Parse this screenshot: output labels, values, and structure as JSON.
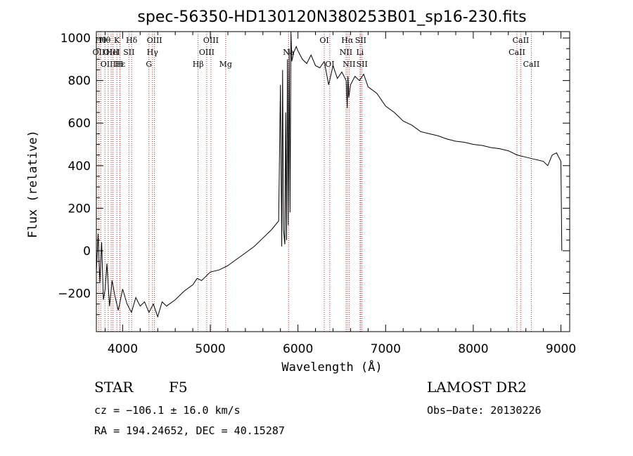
{
  "chart_data": {
    "type": "line",
    "title": "spec-56350-HD130120N380253B01_sp16-230.fits",
    "xlabel": "Wavelength (Å)",
    "ylabel": "Flux (relative)",
    "xlim": [
      3700,
      9100
    ],
    "ylim": [
      -380,
      1030
    ],
    "xticks": [
      4000,
      5000,
      6000,
      7000,
      8000,
      9000
    ],
    "yticks": [
      -200,
      0,
      200,
      400,
      600,
      800,
      1000
    ],
    "line_color": "#000000",
    "marker_color": "#b03030",
    "series": [
      {
        "x": [
          3700,
          3720,
          3740,
          3760,
          3780,
          3800,
          3820,
          3850,
          3880,
          3910,
          3950,
          4000,
          4050,
          4100,
          4150,
          4200,
          4250,
          4300,
          4350,
          4400,
          4450,
          4500,
          4600,
          4700,
          4800,
          4850,
          4900,
          5000,
          5100,
          5200,
          5300,
          5400,
          5500,
          5600,
          5700,
          5780,
          5800,
          5815,
          5825,
          5835,
          5850,
          5860,
          5870,
          5880,
          5890,
          5900,
          5910,
          5920,
          5930,
          5950,
          5980,
          6000,
          6050,
          6100,
          6150,
          6200,
          6250,
          6300,
          6350,
          6400,
          6450,
          6500,
          6550,
          6562,
          6570,
          6580,
          6600,
          6650,
          6700,
          6750,
          6800,
          6900,
          7000,
          7100,
          7200,
          7300,
          7400,
          7500,
          7600,
          7700,
          7800,
          7900,
          8000,
          8100,
          8200,
          8300,
          8400,
          8500,
          8600,
          8700,
          8800,
          8850,
          8900,
          8950,
          9000,
          9010
        ],
        "y": [
          -100,
          80,
          -150,
          40,
          -230,
          -180,
          -60,
          -260,
          -140,
          -210,
          -280,
          -180,
          -250,
          -290,
          -220,
          -260,
          -240,
          -290,
          -250,
          -310,
          -240,
          -260,
          -230,
          -190,
          -160,
          -130,
          -140,
          -100,
          -90,
          -70,
          -40,
          -10,
          20,
          60,
          100,
          140,
          780,
          20,
          850,
          100,
          30,
          650,
          50,
          900,
          120,
          950,
          180,
          1030,
          890,
          930,
          960,
          940,
          900,
          880,
          920,
          870,
          860,
          890,
          780,
          870,
          810,
          840,
          800,
          670,
          820,
          720,
          780,
          820,
          800,
          830,
          770,
          740,
          680,
          650,
          610,
          590,
          560,
          550,
          540,
          525,
          515,
          510,
          500,
          495,
          485,
          480,
          470,
          450,
          440,
          430,
          420,
          400,
          450,
          460,
          420,
          0
        ]
      }
    ],
    "lines": [
      {
        "wl": 3727,
        "row": 1,
        "label": "OII"
      },
      {
        "wl": 3750,
        "row": 0,
        "label": "Hθ"
      },
      {
        "wl": 3798,
        "row": 0,
        "label": "Hθ"
      },
      {
        "wl": 3835,
        "row": 2,
        "label": "OIII"
      },
      {
        "wl": 3869,
        "row": 1,
        "label": "OIII"
      },
      {
        "wl": 3889,
        "row": 1,
        "label": "HeI"
      },
      {
        "wl": 3934,
        "row": 0,
        "label": "K"
      },
      {
        "wl": 3970,
        "row": 2,
        "label": "Hε"
      },
      {
        "wl": 3968,
        "row": 2,
        "label": "H"
      },
      {
        "wl": 4072,
        "row": 1,
        "label": "SII"
      },
      {
        "wl": 4102,
        "row": 0,
        "label": "Hδ"
      },
      {
        "wl": 4300,
        "row": 2,
        "label": "G"
      },
      {
        "wl": 4340,
        "row": 1,
        "label": "Hγ"
      },
      {
        "wl": 4363,
        "row": 0,
        "label": "OIII"
      },
      {
        "wl": 4861,
        "row": 2,
        "label": "Hβ"
      },
      {
        "wl": 4959,
        "row": 1,
        "label": "OIII"
      },
      {
        "wl": 5007,
        "row": 0,
        "label": "OIII"
      },
      {
        "wl": 5175,
        "row": 2,
        "label": "Mg"
      },
      {
        "wl": 5893,
        "row": 1,
        "label": "Na"
      },
      {
        "wl": 6300,
        "row": 0,
        "label": "OI"
      },
      {
        "wl": 6363,
        "row": 2,
        "label": "OI"
      },
      {
        "wl": 6548,
        "row": 1,
        "label": "NII"
      },
      {
        "wl": 6563,
        "row": 0,
        "label": "Hα"
      },
      {
        "wl": 6583,
        "row": 2,
        "label": "NII"
      },
      {
        "wl": 6708,
        "row": 1,
        "label": "Li"
      },
      {
        "wl": 6716,
        "row": 0,
        "label": "SII"
      },
      {
        "wl": 6731,
        "row": 2,
        "label": "SII"
      },
      {
        "wl": 8498,
        "row": 1,
        "label": "CaII"
      },
      {
        "wl": 8542,
        "row": 0,
        "label": "CaII"
      },
      {
        "wl": 8662,
        "row": 2,
        "label": "CaII"
      }
    ]
  },
  "info": {
    "class": "STAR",
    "subclass": "F5",
    "survey": "LAMOST DR2",
    "cz": "cz = −106.1 ± 16.0 km/s",
    "obs_date": "Obs−Date: 20130226",
    "radec": "RA = 194.24652, DEC =  40.15287"
  }
}
